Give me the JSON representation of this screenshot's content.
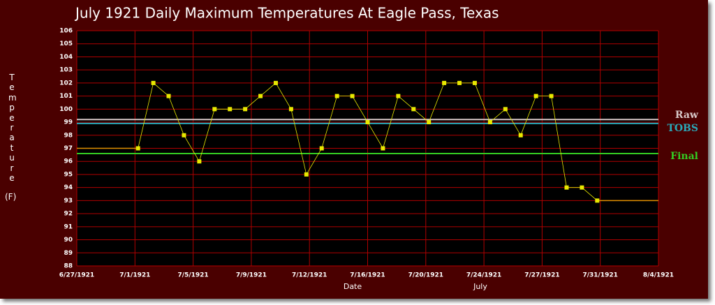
{
  "chart_data": {
    "type": "line",
    "title": "July 1921 Daily Maximum Temperatures At Eagle Pass, Texas",
    "y_label": "Temperature",
    "y_unit": "(F)",
    "x_label": "Date",
    "annotation": "July",
    "x": [
      "1921-07-01",
      "1921-07-02",
      "1921-07-03",
      "1921-07-04",
      "1921-07-05",
      "1921-07-06",
      "1921-07-07",
      "1921-07-08",
      "1921-07-09",
      "1921-07-10",
      "1921-07-11",
      "1921-07-12",
      "1921-07-13",
      "1921-07-14",
      "1921-07-15",
      "1921-07-16",
      "1921-07-17",
      "1921-07-18",
      "1921-07-19",
      "1921-07-20",
      "1921-07-21",
      "1921-07-22",
      "1921-07-23",
      "1921-07-24",
      "1921-07-25",
      "1921-07-26",
      "1921-07-27",
      "1921-07-28",
      "1921-07-29",
      "1921-07-30",
      "1921-07-31"
    ],
    "values": [
      97,
      102,
      101,
      98,
      96,
      100,
      100,
      100,
      101,
      102,
      100,
      95,
      97,
      101,
      101,
      99,
      97,
      101,
      100,
      99,
      102,
      102,
      102,
      99,
      100,
      98,
      101,
      101,
      94,
      94,
      93
    ],
    "color": "#e8e800",
    "extension_color": "#e09000",
    "reference_lines": [
      {
        "name": "Raw",
        "value": 99.2,
        "color": "#d8c8c8"
      },
      {
        "name": "TOBS",
        "value": 98.9,
        "color": "#2aa8b8"
      },
      {
        "name": "Final",
        "value": 96.6,
        "color": "#33cc22"
      }
    ],
    "xlim": [
      "1921-06-27T00:00",
      "1921-08-04T00:00"
    ],
    "xticks": [
      {
        "value": "1921-06-27T00:00",
        "label": "6/27/1921"
      },
      {
        "value": "1921-06-30T19:12",
        "label": "7/1/1921"
      },
      {
        "value": "1921-07-04T14:24",
        "label": "7/5/1921"
      },
      {
        "value": "1921-07-08T09:36",
        "label": "7/9/1921"
      },
      {
        "value": "1921-07-12T04:48",
        "label": "7/12/1921"
      },
      {
        "value": "1921-07-16T00:00",
        "label": "7/16/1921"
      },
      {
        "value": "1921-07-19T19:12",
        "label": "7/20/1921"
      },
      {
        "value": "1921-07-23T14:24",
        "label": "7/24/1921"
      },
      {
        "value": "1921-07-27T09:36",
        "label": "7/27/1921"
      },
      {
        "value": "1921-07-31T04:48",
        "label": "7/31/1921"
      },
      {
        "value": "1921-08-04T00:00",
        "label": "8/4/1921"
      }
    ],
    "ylim": [
      88,
      106
    ],
    "yticks": [
      88,
      89,
      90,
      91,
      92,
      93,
      94,
      95,
      96,
      97,
      98,
      99,
      100,
      101,
      102,
      103,
      104,
      105,
      106
    ],
    "grid": true
  }
}
